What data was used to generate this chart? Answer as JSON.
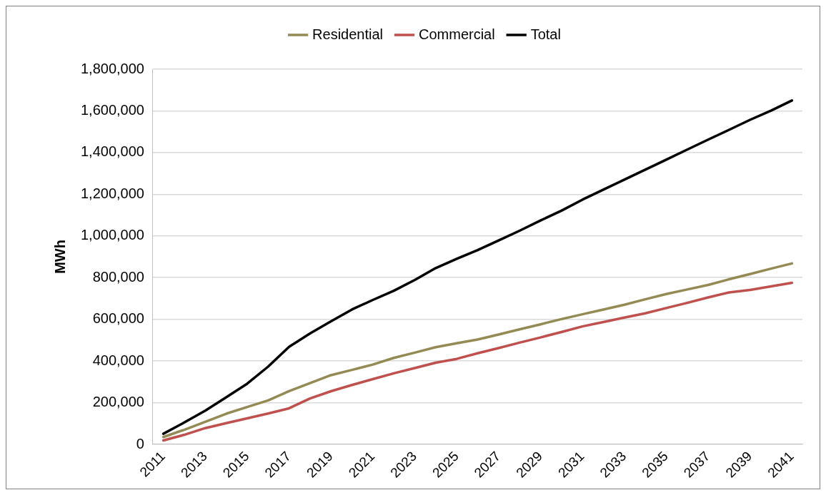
{
  "chart_data": {
    "type": "line",
    "ylabel": "MWh",
    "categories": [
      "2011",
      null,
      "2013",
      null,
      "2015",
      null,
      "2017",
      null,
      "2019",
      null,
      "2021",
      null,
      "2023",
      null,
      "2025",
      null,
      "2027",
      null,
      "2029",
      null,
      "2031",
      null,
      "2033",
      null,
      "2035",
      null,
      "2037",
      null,
      "2039",
      null,
      "2041"
    ],
    "series": [
      {
        "name": "Residential",
        "color": "#948a54",
        "values": [
          35000,
          70000,
          108000,
          147000,
          179000,
          211000,
          255000,
          294000,
          332000,
          357000,
          383000,
          415000,
          440000,
          466000,
          485000,
          503000,
          527000,
          552000,
          576000,
          601000,
          624000,
          647000,
          670000,
          696000,
          721000,
          743000,
          765000,
          792000,
          817000,
          843000,
          868000
        ]
      },
      {
        "name": "Commercial",
        "color": "#c0504d",
        "values": [
          19000,
          46000,
          78000,
          102000,
          125000,
          148000,
          173000,
          220000,
          255000,
          285000,
          313000,
          341000,
          366000,
          392000,
          410000,
          437000,
          462000,
          488000,
          513000,
          539000,
          566000,
          587000,
          608000,
          629000,
          654000,
          679000,
          705000,
          729000,
          741000,
          758000,
          775000
        ]
      },
      {
        "name": "Total",
        "color": "#000000",
        "values": [
          51000,
          105000,
          162000,
          226000,
          291000,
          373000,
          468000,
          532000,
          590000,
          647000,
          693000,
          737000,
          789000,
          846000,
          890000,
          932000,
          978000,
          1025000,
          1074000,
          1121000,
          1174000,
          1222000,
          1270000,
          1318000,
          1366000,
          1414000,
          1462000,
          1509000,
          1557000,
          1601000,
          1650000
        ]
      }
    ],
    "ylim": [
      0,
      1800000
    ],
    "yticks": [
      0,
      {
        "value": 200000,
        "label": "200,000"
      },
      {
        "value": 400000,
        "label": "400,000"
      },
      {
        "value": 600000,
        "label": "600,000"
      },
      {
        "value": 800000,
        "label": "800,000"
      },
      {
        "value": 1000000,
        "label": "1,000,000"
      },
      {
        "value": 1200000,
        "label": "1,200,000"
      },
      {
        "value": 1400000,
        "label": "1,400,000"
      },
      {
        "value": 1600000,
        "label": "1,600,000"
      },
      {
        "value": 1800000,
        "label": "1,800,000"
      }
    ],
    "grid": "y",
    "legend": "top",
    "marker": "none",
    "line_style": "solid"
  }
}
